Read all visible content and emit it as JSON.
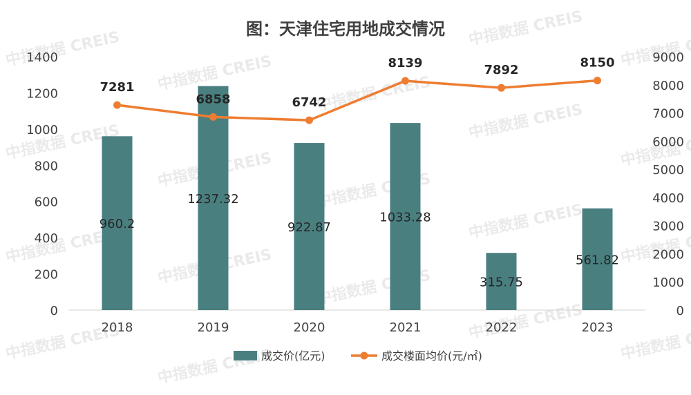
{
  "chart_data": {
    "type": "bar+line",
    "title": "图：天津住宅用地成交情况",
    "categories": [
      "2018",
      "2019",
      "2020",
      "2021",
      "2022",
      "2023"
    ],
    "left_axis": {
      "min": 0,
      "max": 1400,
      "step": 200,
      "ticks": [
        "0",
        "200",
        "400",
        "600",
        "800",
        "1000",
        "1200",
        "1400"
      ]
    },
    "right_axis": {
      "min": 0,
      "max": 9000,
      "step": 1000,
      "ticks": [
        "0",
        "1000",
        "2000",
        "3000",
        "4000",
        "5000",
        "6000",
        "7000",
        "8000",
        "9000"
      ]
    },
    "series": [
      {
        "name": "成交价(亿元)",
        "type": "bar",
        "axis": "left",
        "color": "#4a7f80",
        "values": [
          960.2,
          1237.32,
          922.87,
          1033.28,
          315.75,
          561.82
        ],
        "labels": [
          "960.2",
          "1237.32",
          "922.87",
          "1033.28",
          "315.75",
          "561.82"
        ]
      },
      {
        "name": "成交楼面均价(元/㎡)",
        "type": "line",
        "axis": "right",
        "color": "#ed7d31",
        "values": [
          7281,
          6858,
          6742,
          8139,
          7892,
          8150
        ],
        "labels": [
          "7281",
          "6858",
          "6742",
          "8139",
          "7892",
          "8150"
        ]
      }
    ],
    "legend": "bottom",
    "grid": false
  },
  "watermark": "中指数据 CREIS"
}
